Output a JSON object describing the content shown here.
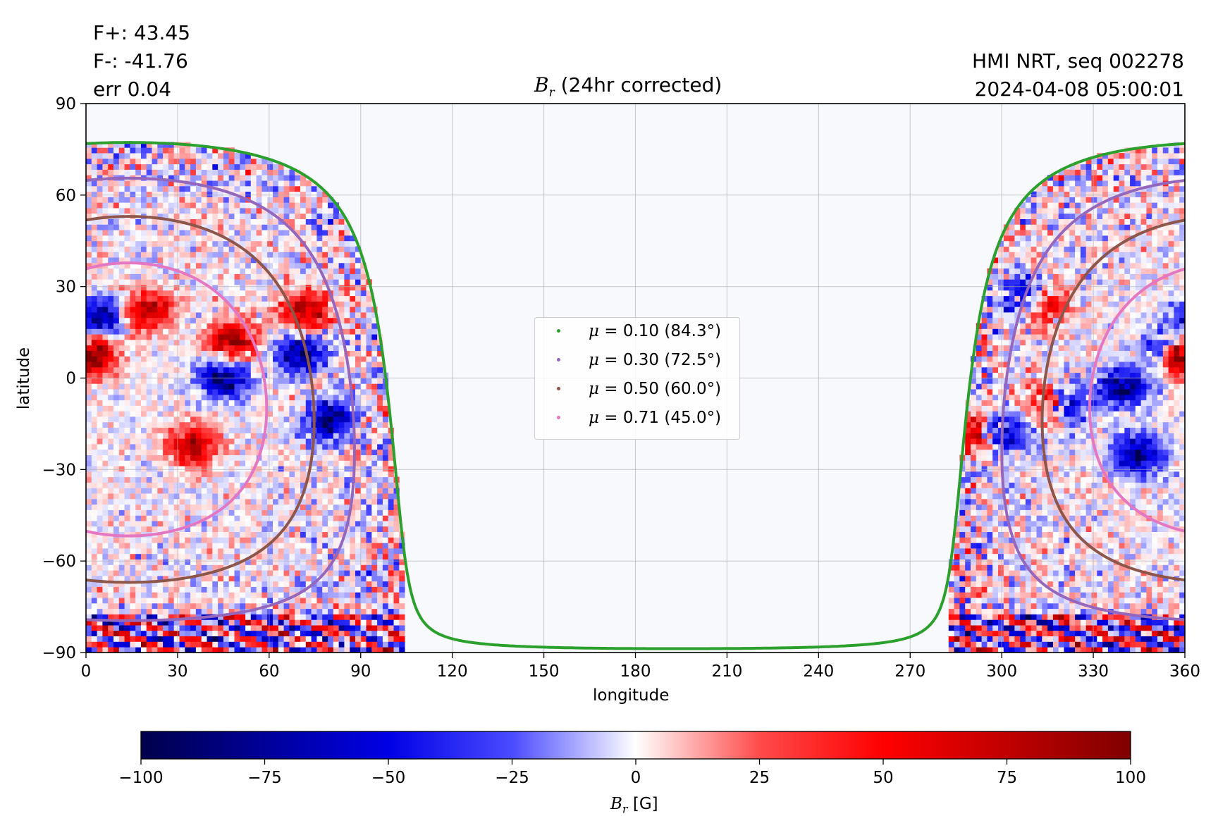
{
  "header": {
    "flux_pos": "F+: 43.45",
    "flux_neg": "F-: -41.76",
    "err": "err 0.04",
    "source": "HMI NRT, seq 002278",
    "timestamp": "2024-04-08 05:00:01"
  },
  "chart_data": {
    "type": "heatmap",
    "title": "B_r (24hr corrected)",
    "title_symbol": "B",
    "title_subscript": "r",
    "title_rest": " (24hr corrected)",
    "xlabel": "longitude",
    "ylabel": "latitude",
    "xlim": [
      0,
      360
    ],
    "ylim": [
      -90,
      90
    ],
    "x_ticks": [
      0,
      30,
      60,
      90,
      120,
      150,
      180,
      210,
      240,
      270,
      300,
      330,
      360
    ],
    "y_ticks": [
      90,
      60,
      30,
      0,
      -30,
      -60,
      -90
    ],
    "y_tick_labels": [
      "90",
      "60",
      "30",
      "0",
      "−30",
      "−60",
      "−90"
    ],
    "grid": true,
    "visible_longitude_ranges": [
      [
        0,
        105
      ],
      [
        283,
        360
      ]
    ],
    "disk_center": {
      "longitude": 14,
      "latitude": -7
    },
    "colormap": "seismic",
    "colorbar": {
      "range": [
        -100,
        100
      ],
      "ticks": [
        -100,
        -75,
        -50,
        -25,
        0,
        25,
        50,
        75,
        100
      ],
      "tick_labels": [
        "−100",
        "−75",
        "−50",
        "−25",
        "0",
        "25",
        "50",
        "75",
        "100"
      ],
      "label_symbol": "B",
      "label_subscript": "r",
      "label_rest": " [G]"
    },
    "legend_placement": "center",
    "series": [
      {
        "name": "μ = 0.10 (84.3°)",
        "mu": 0.1,
        "angle_deg": 84.3,
        "color": "#2ca02c"
      },
      {
        "name": "μ = 0.30 (72.5°)",
        "mu": 0.3,
        "angle_deg": 72.5,
        "color": "#9467bd"
      },
      {
        "name": "μ = 0.50 (60.0°)",
        "mu": 0.5,
        "angle_deg": 60.0,
        "color": "#8c564b"
      },
      {
        "name": "μ = 0.71 (45.0°)",
        "mu": 0.71,
        "angle_deg": 45.0,
        "color": "#e377c2"
      }
    ],
    "legend_labels": [
      {
        "mu_label": "0.10",
        "angle_label": "(84.3°)"
      },
      {
        "mu_label": "0.30",
        "angle_label": "(72.5°)"
      },
      {
        "mu_label": "0.50",
        "angle_label": "(60.0°)"
      },
      {
        "mu_label": "0.71",
        "angle_label": "(45.0°)"
      }
    ],
    "strong_regions": [
      {
        "lon": 20,
        "lat": 22,
        "polarity": "positive"
      },
      {
        "lon": 35,
        "lat": -22,
        "polarity": "positive"
      },
      {
        "lon": 48,
        "lat": 12,
        "polarity": "positive"
      },
      {
        "lon": 70,
        "lat": 8,
        "polarity": "negative"
      },
      {
        "lon": 72,
        "lat": 22,
        "polarity": "positive"
      },
      {
        "lon": 80,
        "lat": -14,
        "polarity": "negative"
      },
      {
        "lon": 5,
        "lat": 20,
        "polarity": "negative"
      },
      {
        "lon": 2,
        "lat": 8,
        "polarity": "positive"
      },
      {
        "lon": 45,
        "lat": 0,
        "polarity": "negative"
      },
      {
        "lon": 308,
        "lat": 26,
        "polarity": "negative"
      },
      {
        "lon": 313,
        "lat": 24,
        "polarity": "positive"
      },
      {
        "lon": 316,
        "lat": -8,
        "polarity": "positive"
      },
      {
        "lon": 320,
        "lat": -8,
        "polarity": "negative"
      },
      {
        "lon": 292,
        "lat": -18,
        "polarity": "positive"
      },
      {
        "lon": 300,
        "lat": -18,
        "polarity": "negative"
      },
      {
        "lon": 355,
        "lat": 10,
        "polarity": "negative"
      },
      {
        "lon": 358,
        "lat": 8,
        "polarity": "positive"
      },
      {
        "lon": 340,
        "lat": -3,
        "polarity": "negative"
      },
      {
        "lon": 345,
        "lat": -25,
        "polarity": "negative"
      }
    ]
  }
}
